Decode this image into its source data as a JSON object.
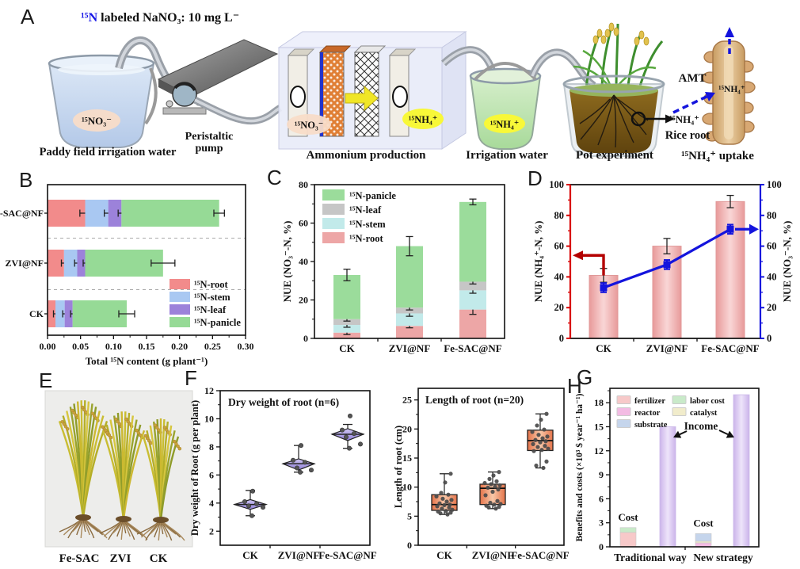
{
  "panels": {
    "a": "A",
    "b": "B",
    "c": "C",
    "d": "D",
    "e": "E",
    "f": "F",
    "g": "G",
    "h": "H"
  },
  "panel_a": {
    "title_isotope": "¹⁵N",
    "title_rest": " labeled NaNO₃: 10 mg L⁻",
    "beaker_tag": "¹⁵NO₃⁻",
    "beaker_caption": "Paddy field irrigation water",
    "pump_caption_1": "Peristaltic",
    "pump_caption_2": "pump",
    "cell_in_tag": "¹⁵NO₃⁻",
    "cell_out_tag": "¹⁵NH₄⁺",
    "cell_caption": "Ammonium production",
    "bucket_tag": "¹⁵NH₄⁺",
    "bucket_caption": "Irrigation water",
    "pot_caption": "Pot experiment",
    "amt": "AMT",
    "root_tag_inner": "¹⁵NH₄⁺",
    "root_tag_outer": "¹⁵NH₄⁺",
    "rice_root": "Rice root",
    "uptake_caption": "¹⁵NH₄⁺ uptake"
  },
  "panel_e": {
    "labels": [
      "Fe-SAC",
      "ZVI",
      "CK"
    ]
  },
  "chart_data": {
    "B": {
      "type": "bar",
      "orientation": "horizontal",
      "stacked": true,
      "xlabel": "Total ¹⁵N content (g plant⁻¹)",
      "xlim": [
        0,
        0.3
      ],
      "xticks": [
        "0.00",
        "0.05",
        "0.10",
        "0.15",
        "0.20",
        "0.25",
        "0.30"
      ],
      "categories": [
        "CK",
        "ZVI@NF",
        "e-SAC@NF"
      ],
      "series": [
        {
          "name": "¹⁵N-root",
          "color": "#f28b8b",
          "values": [
            0.012,
            0.025,
            0.057
          ]
        },
        {
          "name": "¹⁵N-stem",
          "color": "#a9c8f2",
          "values": [
            0.014,
            0.02,
            0.035
          ]
        },
        {
          "name": "¹⁵N-leaf",
          "color": "#9c82da",
          "values": [
            0.012,
            0.012,
            0.02
          ]
        },
        {
          "name": "¹⁵N-panicle",
          "color": "#96da96",
          "values": [
            0.082,
            0.118,
            0.148
          ]
        }
      ],
      "segment_errors": [
        [
          0.003,
          0.003,
          0.003,
          0.012
        ],
        [
          0.004,
          0.004,
          0.003,
          0.018
        ],
        [
          0.008,
          0.006,
          0.005,
          0.008
        ]
      ],
      "legend_position": "lower right"
    },
    "C": {
      "type": "bar",
      "stacked": true,
      "ylabel": "NUE (NO₃⁻-N, %)",
      "ylim": [
        0,
        80
      ],
      "yticks": [
        0,
        20,
        40,
        60,
        80
      ],
      "categories": [
        "CK",
        "ZVI@NF",
        "Fe-SAC@NF"
      ],
      "series": [
        {
          "name": "¹⁵N-root",
          "color": "#eda6a6",
          "values": [
            3,
            6.5,
            15
          ]
        },
        {
          "name": "¹⁵N-stem",
          "color": "#c2eaea",
          "values": [
            4,
            6.5,
            10
          ]
        },
        {
          "name": "¹⁵N-leaf",
          "color": "#c6c6c6",
          "values": [
            3,
            3,
            4.5
          ]
        },
        {
          "name": "¹⁵N-panicle",
          "color": "#9bdc9b",
          "values": [
            23,
            32,
            41.5
          ]
        }
      ],
      "segment_errors": [
        [
          1,
          1.2,
          1,
          3
        ],
        [
          1,
          1.5,
          1.2,
          5
        ],
        [
          2.5,
          1.5,
          1.2,
          1.5
        ]
      ],
      "legend_order": [
        "¹⁵N-panicle",
        "¹⁵N-leaf",
        "¹⁵N-stem",
        "¹⁵N-root"
      ],
      "legend_position": "upper left"
    },
    "D": {
      "type": "bar+line",
      "categories": [
        "CK",
        "ZVI@NF",
        "Fe-SAC@NF"
      ],
      "ylim": [
        0,
        100
      ],
      "yticks": [
        0,
        20,
        40,
        60,
        80,
        100
      ],
      "bars": {
        "label": "NUE (NH₄⁺-N, %)",
        "color_axis": "#d80000",
        "values": [
          41,
          60,
          89
        ],
        "errors": [
          4.5,
          5,
          4
        ]
      },
      "line": {
        "label": "NUE (NO₃⁻-N, %)",
        "color": "#1414dd",
        "values": [
          33,
          48,
          71
        ],
        "errors": [
          3,
          3,
          3
        ]
      }
    },
    "F": {
      "type": "box",
      "title": "Dry weight of root (n=6)",
      "ylabel": "Dry weight of Root (g per plant)",
      "ylim": [
        1,
        12
      ],
      "yticks": [
        2,
        4,
        6,
        8,
        10,
        12
      ],
      "categories": [
        "CK",
        "ZVI@NF",
        "Fe-SAC@NF"
      ],
      "groups": [
        {
          "median": 3.9,
          "d_low": 3.55,
          "d_high": 4.25,
          "w_low": 3.1,
          "w_high": 4.9,
          "points": [
            4.85,
            4.1,
            3.95,
            3.8,
            3.7,
            3.1
          ]
        },
        {
          "median": 6.8,
          "d_low": 6.35,
          "d_high": 7.15,
          "w_low": 6.2,
          "w_high": 8.1,
          "points": [
            8.1,
            7.05,
            6.9,
            6.5,
            6.35,
            6.2
          ]
        },
        {
          "median": 8.9,
          "d_low": 8.45,
          "d_high": 9.3,
          "w_low": 7.9,
          "w_high": 9.6,
          "points": [
            10.2,
            9.2,
            8.95,
            8.7,
            8.2,
            7.9
          ]
        }
      ]
    },
    "G": {
      "type": "box",
      "title": "Length of root (n=20)",
      "ylabel": "Length of root (cm)",
      "ylim": [
        0,
        27
      ],
      "yticks": [
        0,
        5,
        10,
        15,
        20,
        25
      ],
      "categories": [
        "CK",
        "ZVI@NF",
        "Fe-SAC@NF"
      ],
      "groups": [
        {
          "q1": 6.0,
          "median": 7.0,
          "q3": 8.7,
          "w_low": 5.3,
          "w_high": 12.3,
          "points": [
            5.3,
            5.5,
            5.6,
            5.8,
            5.9,
            6.1,
            6.3,
            6.5,
            6.7,
            6.9,
            7.0,
            7.2,
            7.5,
            7.8,
            8.0,
            8.4,
            8.7,
            9.0,
            10.8,
            12.3
          ]
        },
        {
          "q1": 7.0,
          "median": 9.8,
          "q3": 10.5,
          "w_low": 6.3,
          "w_high": 12.6,
          "points": [
            6.3,
            6.5,
            6.6,
            6.8,
            7.0,
            7.1,
            7.3,
            7.6,
            8.6,
            9.2,
            9.6,
            9.9,
            10.1,
            10.3,
            10.5,
            10.7,
            11.0,
            11.4,
            12.0,
            12.6
          ]
        },
        {
          "q1": 16.3,
          "median": 18.0,
          "q3": 19.8,
          "w_low": 13.3,
          "w_high": 22.6,
          "points": [
            13.3,
            13.7,
            14.4,
            16.2,
            16.4,
            16.6,
            16.9,
            17.1,
            17.4,
            17.7,
            17.9,
            18.1,
            18.4,
            18.7,
            19.0,
            19.5,
            19.9,
            20.6,
            21.6,
            22.6
          ]
        }
      ]
    },
    "H": {
      "type": "bar",
      "ylabel": "Benefits and costs (×10³ $ year⁻¹ ha⁻¹)",
      "ylim": [
        0,
        19.8
      ],
      "yticks": [
        0,
        3,
        6,
        9,
        12,
        15,
        18
      ],
      "groups": [
        "Traditional way",
        "New strategy"
      ],
      "legend": [
        {
          "name": "fertilizer",
          "color": "#f7c9c9"
        },
        {
          "name": "reactor",
          "color": "#f3bbe3"
        },
        {
          "name": "substrate",
          "color": "#c5d5ec"
        },
        {
          "name": "labor cost",
          "color": "#c9eac9"
        },
        {
          "name": "catalyst",
          "color": "#f1eccb"
        }
      ],
      "cost_label": "Cost",
      "income_label": "Income",
      "bars": [
        {
          "group": "Traditional way",
          "kind": "cost",
          "stack": [
            {
              "name": "fertilizer",
              "value": 1.8
            },
            {
              "name": "labor cost",
              "value": 0.6
            }
          ]
        },
        {
          "group": "Traditional way",
          "kind": "income",
          "value": 15.0
        },
        {
          "group": "New strategy",
          "kind": "cost",
          "stack": [
            {
              "name": "reactor",
              "value": 0.5
            },
            {
              "name": "catalyst",
              "value": 0.2
            },
            {
              "name": "substrate",
              "value": 0.95
            }
          ]
        },
        {
          "group": "New strategy",
          "kind": "income",
          "value": 19.0
        }
      ]
    }
  }
}
